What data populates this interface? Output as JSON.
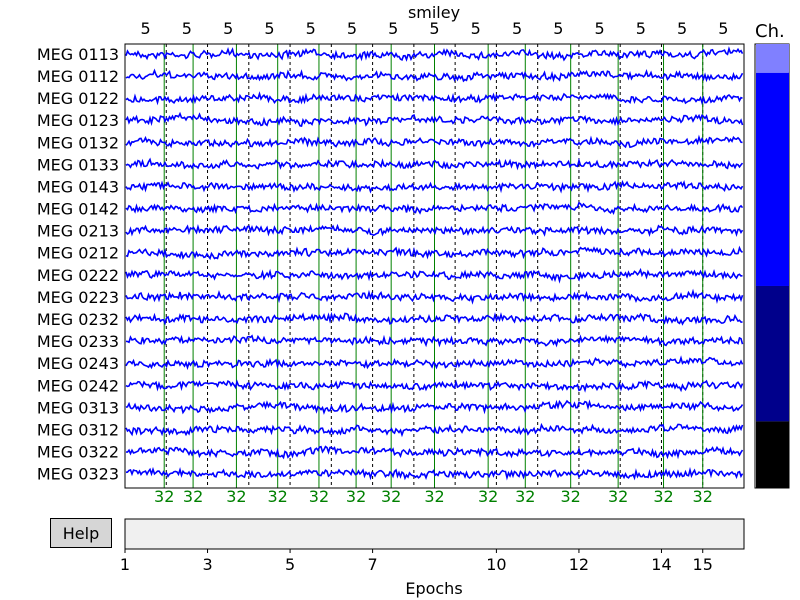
{
  "chart_data": {
    "type": "line",
    "title": "smiley",
    "xlabel": "Epochs",
    "ylabel": "",
    "channels": [
      "MEG 0113",
      "MEG 0112",
      "MEG 0122",
      "MEG 0123",
      "MEG 0132",
      "MEG 0133",
      "MEG 0143",
      "MEG 0142",
      "MEG 0213",
      "MEG 0212",
      "MEG 0222",
      "MEG 0223",
      "MEG 0232",
      "MEG 0233",
      "MEG 0243",
      "MEG 0242",
      "MEG 0313",
      "MEG 0312",
      "MEG 0322",
      "MEG 0323"
    ],
    "top_event_labels": [
      "5",
      "5",
      "5",
      "5",
      "5",
      "5",
      "5",
      "5",
      "5",
      "5",
      "5",
      "5",
      "5",
      "5",
      "5"
    ],
    "bottom_event_labels": [
      "32",
      "32",
      "32",
      "32",
      "32",
      "32",
      "32",
      "32",
      "32",
      "32",
      "32",
      "32",
      "32",
      "32"
    ],
    "event_epochs_32": [
      1.95,
      2.65,
      3.7,
      4.7,
      5.7,
      6.6,
      7.45,
      8.5,
      9.8,
      10.7,
      11.8,
      12.95,
      14.05,
      15.0
    ],
    "epoch_ticks": [
      1,
      3,
      5,
      7,
      10,
      12,
      14,
      15
    ],
    "epoch_range": [
      1,
      16
    ],
    "series_color": "#0000ff",
    "event_color": "#008000",
    "scrollbar": {
      "label": "Ch.",
      "segments": [
        {
          "color": "#8080ff",
          "fraction": 0.065
        },
        {
          "color": "#0000ff",
          "fraction": 0.48
        },
        {
          "color": "#00008b",
          "fraction": 0.305
        },
        {
          "color": "#000000",
          "fraction": 0.15
        }
      ]
    }
  },
  "help_button": {
    "label": "Help"
  }
}
